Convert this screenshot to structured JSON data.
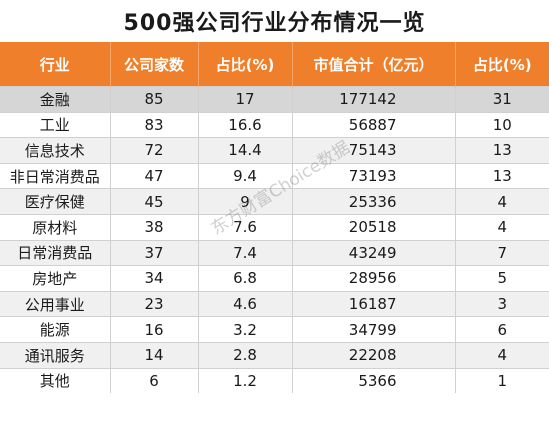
{
  "title": "500强公司行业分布情况一览",
  "headers": [
    "行业",
    "公司家数",
    "占比(%)",
    "市值合计（亿元）",
    "占比(%)"
  ],
  "rows": [
    {
      "industry": "金融",
      "count": "85",
      "count_pct": "17",
      "cap": "177142",
      "cap_pct": "31"
    },
    {
      "industry": "工业",
      "count": "83",
      "count_pct": "16.6",
      "cap": "56887",
      "cap_pct": "10"
    },
    {
      "industry": "信息技术",
      "count": "72",
      "count_pct": "14.4",
      "cap": "75143",
      "cap_pct": "13"
    },
    {
      "industry": "非日常消费品",
      "count": "47",
      "count_pct": "9.4",
      "cap": "73193",
      "cap_pct": "13"
    },
    {
      "industry": "医疗保健",
      "count": "45",
      "count_pct": "9",
      "cap": "25336",
      "cap_pct": "4"
    },
    {
      "industry": "原材料",
      "count": "38",
      "count_pct": "7.6",
      "cap": "20518",
      "cap_pct": "4"
    },
    {
      "industry": "日常消费品",
      "count": "37",
      "count_pct": "7.4",
      "cap": "43249",
      "cap_pct": "7"
    },
    {
      "industry": "房地产",
      "count": "34",
      "count_pct": "6.8",
      "cap": "28956",
      "cap_pct": "5"
    },
    {
      "industry": "公用事业",
      "count": "23",
      "count_pct": "4.6",
      "cap": "16187",
      "cap_pct": "3"
    },
    {
      "industry": "能源",
      "count": "16",
      "count_pct": "3.2",
      "cap": "34799",
      "cap_pct": "6"
    },
    {
      "industry": "通讯服务",
      "count": "14",
      "count_pct": "2.8",
      "cap": "22208",
      "cap_pct": "4"
    },
    {
      "industry": "其他",
      "count": "6",
      "count_pct": "1.2",
      "cap": "5366",
      "cap_pct": "1"
    }
  ],
  "watermark": "东方财富Choice数据",
  "colors": {
    "header_bg": "#f07f2b",
    "header_text": "#ffffff",
    "first_row_bg": "#d6d6d6",
    "alt_row_bg": "#f0f0f0"
  }
}
